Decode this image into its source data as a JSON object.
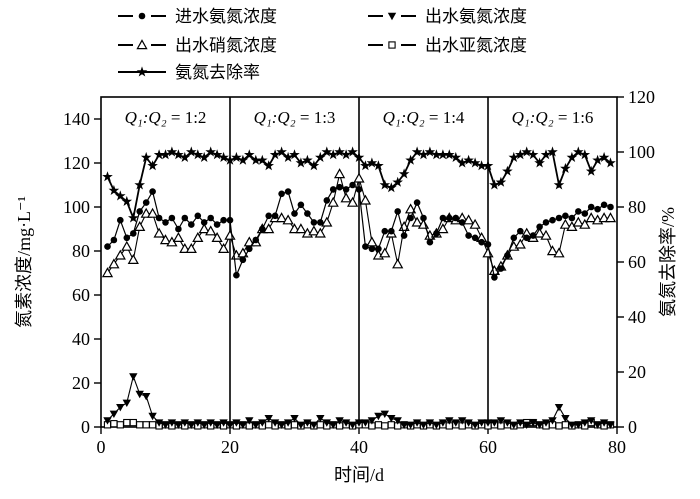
{
  "figure": {
    "background": "#ffffff",
    "line_color": "#000000"
  },
  "legend": {
    "items": [
      {
        "label": "进水氨氮浓度",
        "marker": "filled-circle",
        "col": 0,
        "row": 0
      },
      {
        "label": "出水硝氮浓度",
        "marker": "open-up-triangle",
        "col": 0,
        "row": 1
      },
      {
        "label": "氨氮去除率",
        "marker": "filled-star",
        "col": 0,
        "row": 2
      },
      {
        "label": "出水氨氮浓度",
        "marker": "filled-down-triangle",
        "col": 1,
        "row": 0
      },
      {
        "label": "出水亚氮浓度",
        "marker": "open-square",
        "col": 1,
        "row": 1
      }
    ]
  },
  "chart_data": {
    "type": "line",
    "title": "",
    "xlabel": "时间/d",
    "ylabel_left": "氮素浓度/mg·L⁻¹",
    "ylabel_right": "氨氮去除率/%",
    "xlim": [
      0,
      80
    ],
    "xticks": [
      0,
      20,
      40,
      60,
      80
    ],
    "ylim_left": [
      0,
      150
    ],
    "yticks_left": [
      0,
      20,
      40,
      60,
      80,
      100,
      120,
      140
    ],
    "ylim_right": [
      0,
      120
    ],
    "yticks_right": [
      0,
      20,
      40,
      60,
      80,
      100,
      120
    ],
    "grid": false,
    "legend_position": "top",
    "panels": [
      {
        "label": "Q₁:Q₂ = 1:2",
        "x_start": 0,
        "x_end": 20
      },
      {
        "label": "Q₁:Q₂ = 1:3",
        "x_start": 20,
        "x_end": 40
      },
      {
        "label": "Q₁:Q₂ = 1:4",
        "x_start": 40,
        "x_end": 60
      },
      {
        "label": "Q₁:Q₂ = 1:6",
        "x_start": 60,
        "x_end": 80
      }
    ],
    "x": [
      1,
      2,
      3,
      4,
      5,
      6,
      7,
      8,
      9,
      10,
      11,
      12,
      13,
      14,
      15,
      16,
      17,
      18,
      19,
      20,
      21,
      22,
      23,
      24,
      25,
      26,
      27,
      28,
      29,
      30,
      31,
      32,
      33,
      34,
      35,
      36,
      37,
      38,
      39,
      40,
      41,
      42,
      43,
      44,
      45,
      46,
      47,
      48,
      49,
      50,
      51,
      52,
      53,
      54,
      55,
      56,
      57,
      58,
      59,
      60,
      61,
      62,
      63,
      64,
      65,
      66,
      67,
      68,
      69,
      70,
      71,
      72,
      73,
      74,
      75,
      76,
      77,
      78,
      79
    ],
    "series": [
      {
        "name": "出水亚氮浓度",
        "marker": "open-square",
        "axis": "left",
        "values": [
          1,
          1.5,
          1,
          2,
          2,
          1,
          1,
          1,
          0.5,
          1,
          0.5,
          1,
          0.5,
          1,
          0.5,
          1,
          0.5,
          1,
          0.5,
          1,
          0.5,
          1,
          0.5,
          1,
          0.5,
          1,
          0.5,
          1,
          0.5,
          1,
          0.5,
          1,
          0.5,
          1,
          0.5,
          1,
          0.5,
          1,
          0.5,
          1,
          1,
          0.5,
          1,
          0.5,
          1,
          0.5,
          1,
          0.5,
          1,
          0.5,
          1,
          0.5,
          1,
          0.5,
          1,
          0.5,
          1,
          0.5,
          1,
          0.5,
          1,
          0.5,
          1,
          0.5,
          1,
          2,
          2,
          1,
          0.5,
          1,
          0.5,
          1,
          0.5,
          1,
          0.5,
          2,
          1,
          0.5,
          1
        ]
      },
      {
        "name": "出水氨氮浓度",
        "marker": "filled-down-triangle",
        "axis": "left",
        "values": [
          3,
          6,
          9,
          11,
          23,
          15,
          14,
          5,
          2,
          1,
          2,
          1,
          2,
          1,
          2,
          1,
          2,
          1,
          2,
          1,
          2,
          1,
          3,
          1,
          2,
          4,
          2,
          1,
          2,
          4,
          1,
          2,
          1,
          4,
          2,
          1,
          3,
          2,
          1,
          2,
          2,
          3,
          5,
          6,
          4,
          3,
          1,
          1,
          2,
          1,
          2,
          1,
          2,
          3,
          2,
          3,
          2,
          1,
          2,
          2,
          2,
          3,
          2,
          1,
          2,
          1,
          2,
          1,
          2,
          3,
          9,
          4,
          1,
          1,
          2,
          3,
          1,
          2,
          1
        ]
      },
      {
        "name": "出水硝氮浓度",
        "marker": "open-up-triangle",
        "axis": "left",
        "values": [
          70,
          74,
          78,
          82,
          76,
          91,
          97,
          97,
          88,
          85,
          84,
          86,
          81,
          81,
          86,
          90,
          89,
          86,
          81,
          87,
          78,
          79,
          84,
          84,
          90,
          90,
          95,
          95,
          94,
          90,
          90,
          88,
          89,
          88,
          93,
          102,
          115,
          104,
          102,
          113,
          103,
          84,
          78,
          79,
          88,
          74,
          91,
          99,
          93,
          92,
          87,
          88,
          90,
          95,
          94,
          95,
          94,
          92,
          86,
          79,
          71,
          73,
          78,
          82,
          83,
          88,
          86,
          88,
          87,
          80,
          79,
          92,
          91,
          93,
          92,
          95,
          94,
          95,
          95
        ]
      },
      {
        "name": "进水氨氮浓度",
        "marker": "filled-circle",
        "axis": "left",
        "values": [
          82,
          85,
          94,
          86,
          88,
          98,
          102,
          107,
          95,
          93,
          95,
          90,
          95,
          92,
          96,
          93,
          95,
          92,
          94,
          94,
          69,
          76,
          81,
          85,
          90,
          96,
          96,
          106,
          107,
          97,
          101,
          97,
          93,
          93,
          103,
          108,
          109,
          108,
          110,
          108,
          82,
          81,
          81,
          89,
          89,
          98,
          87,
          95,
          102,
          95,
          84,
          88,
          95,
          95,
          95,
          93,
          87,
          86,
          84,
          83,
          68,
          72,
          78,
          86,
          89,
          86,
          87,
          91,
          93,
          94,
          95,
          96,
          95,
          98,
          97,
          100,
          99,
          101,
          100
        ]
      },
      {
        "name": "氨氮去除率",
        "marker": "filled-star",
        "axis": "right",
        "values": [
          91,
          86,
          84,
          82,
          76,
          88,
          98,
          95,
          99,
          99,
          100,
          99,
          98,
          100,
          99,
          98,
          100,
          99,
          98,
          97,
          98,
          97,
          99,
          97,
          97,
          95,
          99,
          100,
          98,
          99,
          96,
          97,
          95,
          98,
          100,
          99,
          100,
          99,
          100,
          98,
          95,
          96,
          95,
          88,
          87,
          89,
          92,
          97,
          100,
          99,
          100,
          99,
          99,
          99,
          98,
          96,
          97,
          96,
          95,
          95,
          88,
          89,
          93,
          98,
          99,
          100,
          99,
          96,
          99,
          100,
          88,
          94,
          98,
          100,
          99,
          93,
          97,
          98,
          96
        ]
      }
    ]
  }
}
